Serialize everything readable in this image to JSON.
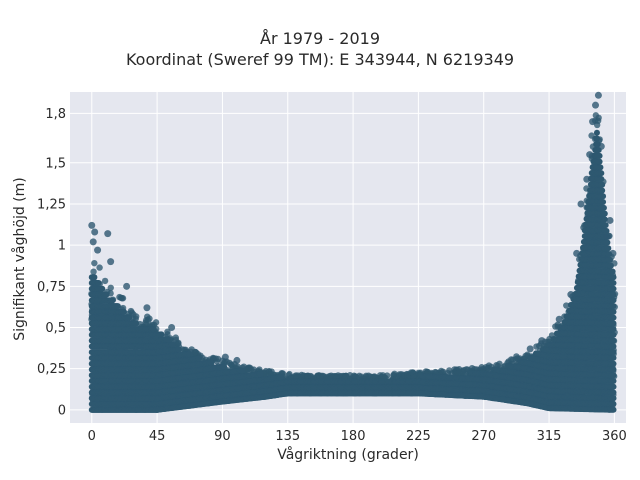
{
  "chart_data": {
    "type": "scatter",
    "title": "År 1979 - 2019",
    "subtitle": "Koordinat (Sweref 99 TM): E 343944, N 6219349",
    "xlabel": "Vågriktning (grader)",
    "ylabel": "Signifikant våghöjd (m)",
    "xlim": [
      -15,
      368
    ],
    "ylim": [
      -0.08,
      1.93
    ],
    "xticks": [
      0,
      45,
      90,
      135,
      180,
      225,
      270,
      315,
      360
    ],
    "xtick_labels": [
      "0",
      "45",
      "90",
      "135",
      "180",
      "225",
      "270",
      "315",
      "360"
    ],
    "yticks": [
      0,
      0.25,
      0.5,
      0.75,
      1,
      1.25,
      1.5,
      1.8
    ],
    "ytick_labels": [
      "0",
      "0,25",
      "0,5",
      "0,75",
      "1",
      "1,25",
      "1,5",
      "1,8"
    ],
    "grid": true,
    "marker_color": "#2e5870",
    "plot_background": "#e5e7ef",
    "upper_envelope": [
      {
        "x": 0,
        "y": 0.95
      },
      {
        "x": 10,
        "y": 0.8
      },
      {
        "x": 20,
        "y": 0.7
      },
      {
        "x": 30,
        "y": 0.6
      },
      {
        "x": 45,
        "y": 0.55
      },
      {
        "x": 60,
        "y": 0.42
      },
      {
        "x": 75,
        "y": 0.35
      },
      {
        "x": 90,
        "y": 0.3
      },
      {
        "x": 105,
        "y": 0.27
      },
      {
        "x": 120,
        "y": 0.24
      },
      {
        "x": 135,
        "y": 0.22
      },
      {
        "x": 150,
        "y": 0.21
      },
      {
        "x": 165,
        "y": 0.21
      },
      {
        "x": 180,
        "y": 0.21
      },
      {
        "x": 195,
        "y": 0.21
      },
      {
        "x": 210,
        "y": 0.22
      },
      {
        "x": 225,
        "y": 0.23
      },
      {
        "x": 240,
        "y": 0.24
      },
      {
        "x": 255,
        "y": 0.25
      },
      {
        "x": 270,
        "y": 0.26
      },
      {
        "x": 285,
        "y": 0.3
      },
      {
        "x": 300,
        "y": 0.35
      },
      {
        "x": 315,
        "y": 0.45
      },
      {
        "x": 325,
        "y": 0.6
      },
      {
        "x": 333,
        "y": 0.8
      },
      {
        "x": 338,
        "y": 1.1
      },
      {
        "x": 342,
        "y": 1.45
      },
      {
        "x": 345,
        "y": 1.7
      },
      {
        "x": 348,
        "y": 1.92
      },
      {
        "x": 350,
        "y": 1.75
      },
      {
        "x": 353,
        "y": 1.4
      },
      {
        "x": 356,
        "y": 1.1
      },
      {
        "x": 360,
        "y": 0.9
      }
    ],
    "lower_envelope": [
      {
        "x": 0,
        "y": 0.0
      },
      {
        "x": 45,
        "y": 0.0
      },
      {
        "x": 90,
        "y": 0.05
      },
      {
        "x": 120,
        "y": 0.08
      },
      {
        "x": 135,
        "y": 0.1
      },
      {
        "x": 180,
        "y": 0.1
      },
      {
        "x": 225,
        "y": 0.1
      },
      {
        "x": 270,
        "y": 0.08
      },
      {
        "x": 300,
        "y": 0.04
      },
      {
        "x": 315,
        "y": 0.01
      },
      {
        "x": 360,
        "y": 0.0
      }
    ],
    "outliers": [
      {
        "x": 0,
        "y": 1.12
      },
      {
        "x": 2,
        "y": 1.08
      },
      {
        "x": 1,
        "y": 1.02
      },
      {
        "x": 11,
        "y": 1.07
      },
      {
        "x": 4,
        "y": 0.97
      },
      {
        "x": 13,
        "y": 0.9
      },
      {
        "x": 24,
        "y": 0.75
      },
      {
        "x": 38,
        "y": 0.62
      },
      {
        "x": 55,
        "y": 0.5
      },
      {
        "x": 92,
        "y": 0.32
      },
      {
        "x": 100,
        "y": 0.3
      },
      {
        "x": 349,
        "y": 1.91
      },
      {
        "x": 347,
        "y": 1.85
      },
      {
        "x": 345,
        "y": 1.75
      },
      {
        "x": 343,
        "y": 1.55
      },
      {
        "x": 351,
        "y": 1.6
      },
      {
        "x": 341,
        "y": 1.4
      },
      {
        "x": 337,
        "y": 1.25
      },
      {
        "x": 334,
        "y": 0.95
      },
      {
        "x": 330,
        "y": 0.7
      },
      {
        "x": 322,
        "y": 0.55
      },
      {
        "x": 310,
        "y": 0.42
      },
      {
        "x": 302,
        "y": 0.37
      },
      {
        "x": 357,
        "y": 1.15
      },
      {
        "x": 359,
        "y": 0.95
      },
      {
        "x": 355,
        "y": 1.05
      }
    ]
  }
}
